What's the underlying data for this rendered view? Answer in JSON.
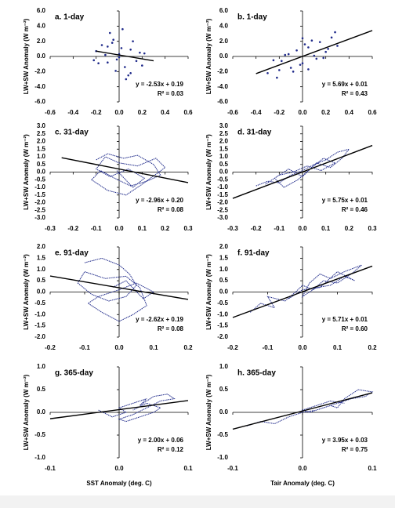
{
  "chart_data": [
    {
      "type": "scatter",
      "title": "a. 1-day",
      "ylabel": "LW+SW Anomaly (W m⁻²)",
      "color": "#1f2a8a",
      "x": [
        -0.15,
        -0.1,
        -0.05,
        0,
        0.05,
        0.1,
        0.15,
        -0.2,
        0.2,
        -0.08,
        0.08,
        0.02,
        -0.02,
        0.12,
        -0.12,
        0.06,
        -0.06,
        0.18,
        -0.18,
        0.03,
        -0.03,
        0.1,
        -0.1,
        0,
        0.22,
        -0.22
      ],
      "values": [
        1.5,
        -0.8,
        2.2,
        0.3,
        -1.4,
        0.9,
        -0.6,
        0.7,
        -1.2,
        3.1,
        -2.5,
        1.1,
        -0.4,
        2.0,
        0.2,
        -3.0,
        1.8,
        0.5,
        -0.9,
        3.6,
        -1.9,
        -2.2,
        1.3,
        -0.1,
        0.4,
        -0.5
      ],
      "fit": {
        "x": [
          -0.2,
          0.3
        ],
        "values": [
          0.7,
          -0.57
        ],
        "color": "#000000"
      },
      "equation": "y = -2.53x + 0.19",
      "r2": "R² = 0.03",
      "xlim": [
        -0.6,
        0.6
      ],
      "xticks": [
        -0.6,
        -0.4,
        -0.2,
        {
          "value": 0,
          "label": "0.0"
        },
        0.2,
        0.4,
        0.6
      ],
      "ylim": [
        -6,
        6
      ],
      "yticks": [
        {
          "value": -6,
          "label": "-6.0"
        },
        {
          "value": -4,
          "label": "-4.0"
        },
        {
          "value": -2,
          "label": "-2.0"
        },
        {
          "value": 0,
          "label": "0.0"
        },
        {
          "value": 2,
          "label": "2.0"
        },
        {
          "value": 4,
          "label": "4.0"
        },
        {
          "value": 6,
          "label": "6.0"
        }
      ]
    },
    {
      "type": "scatter",
      "title": "b. 1-day",
      "ylabel": "LW+SW Anomaly (W m⁻²)",
      "color": "#1f2a8a",
      "x": [
        -0.3,
        -0.25,
        -0.2,
        -0.15,
        -0.1,
        -0.05,
        0,
        0.05,
        0.1,
        0.15,
        0.2,
        0.25,
        0.3,
        -0.22,
        -0.12,
        -0.02,
        0.08,
        0.18,
        0.28,
        -0.18,
        -0.08,
        0.02,
        0.12,
        0.22,
        0,
        0.05
      ],
      "values": [
        -2.2,
        -0.5,
        -1.8,
        0.2,
        -1.5,
        0.8,
        -0.9,
        1.2,
        0.1,
        1.9,
        0.6,
        2.5,
        1.4,
        -2.8,
        0.3,
        -1.1,
        2.1,
        -0.2,
        3.2,
        -0.6,
        -2.0,
        1.6,
        -0.3,
        1.0,
        2.4,
        -1.7
      ],
      "fit": {
        "x": [
          -0.4,
          0.6
        ],
        "values": [
          -2.27,
          3.42
        ],
        "color": "#000000"
      },
      "equation": "y = 5.69x + 0.01",
      "r2": "R² = 0.43",
      "xlim": [
        -0.6,
        0.6
      ],
      "xticks": [
        -0.6,
        -0.4,
        -0.2,
        {
          "value": 0,
          "label": "0.0"
        },
        0.2,
        0.4,
        0.6
      ],
      "ylim": [
        -6,
        6
      ],
      "yticks": [
        {
          "value": -6,
          "label": "-6.0"
        },
        {
          "value": -4,
          "label": "-4.0"
        },
        {
          "value": -2,
          "label": "-2.0"
        },
        {
          "value": 0,
          "label": "0.0"
        },
        {
          "value": 2,
          "label": "2.0"
        },
        {
          "value": 4,
          "label": "4.0"
        },
        {
          "value": 6,
          "label": "6.0"
        }
      ]
    },
    {
      "type": "line",
      "title": "c. 31-day",
      "ylabel": "LW+SW Anomaly (W m⁻²)",
      "color": "#1f2a8a",
      "x": [
        -0.1,
        -0.05,
        0.02,
        0.08,
        0.15,
        0.18,
        0.12,
        0.05,
        -0.02,
        -0.08,
        -0.12,
        -0.05,
        0.03,
        0.1,
        0.2,
        0.16,
        0.08,
        0,
        -0.06,
        -0.1,
        -0.04,
        0.04,
        0.11,
        0.06,
        -0.01
      ],
      "values": [
        0.8,
        1.2,
        0.9,
        1.1,
        0.5,
        -0.2,
        -0.6,
        -0.9,
        -0.4,
        0.1,
        -0.5,
        -1.2,
        -1.5,
        -0.8,
        0.3,
        0.9,
        0.4,
        0.6,
        1.0,
        0.2,
        -0.3,
        0.2,
        -0.4,
        -1.0,
        0.1
      ],
      "fit": {
        "x": [
          -0.25,
          0.3
        ],
        "values": [
          0.94,
          -0.69
        ],
        "color": "#000000"
      },
      "equation": "y = -2.96x + 0.20",
      "r2": "R² = 0.08",
      "xlim": [
        -0.3,
        0.3
      ],
      "xticks": [
        -0.3,
        -0.2,
        -0.1,
        {
          "value": 0,
          "label": "0.0"
        },
        0.1,
        0.2,
        0.3
      ],
      "ylim": [
        -3,
        3
      ],
      "yticks": [
        {
          "value": -3,
          "label": "-3.0"
        },
        -2.5,
        {
          "value": -2,
          "label": "-2.0"
        },
        -1.5,
        {
          "value": -1,
          "label": "-1.0"
        },
        -0.5,
        {
          "value": 0,
          "label": "0.0"
        },
        0.5,
        {
          "value": 1,
          "label": "1.0"
        },
        1.5,
        {
          "value": 2,
          "label": "2.0"
        },
        2.5,
        {
          "value": 3,
          "label": "3.0"
        }
      ]
    },
    {
      "type": "line",
      "title": "d. 31-day",
      "ylabel": "LW+SW Anomaly (W m⁻²)",
      "color": "#1f2a8a",
      "x": [
        -0.2,
        -0.15,
        -0.1,
        -0.05,
        0,
        0.05,
        0.1,
        0.15,
        0.2,
        0.17,
        0.12,
        0.06,
        0,
        -0.06,
        -0.12,
        -0.08,
        -0.02,
        0.04,
        0.09,
        0.14,
        0.08,
        0.02,
        -0.04,
        -0.1,
        -0.16
      ],
      "values": [
        -0.9,
        -0.6,
        -0.7,
        -0.2,
        0.1,
        0.5,
        0.8,
        1.3,
        1.5,
        0.9,
        0.3,
        0.6,
        -0.3,
        0.2,
        -0.4,
        -1.0,
        -0.5,
        0.3,
        0.9,
        0.6,
        0.1,
        0.4,
        0.0,
        -0.2,
        -0.8
      ],
      "fit": {
        "x": [
          -0.3,
          0.3
        ],
        "values": [
          -1.72,
          1.74
        ],
        "color": "#000000"
      },
      "equation": "y = 5.75x + 0.01",
      "r2": "R² = 0.46",
      "xlim": [
        -0.3,
        0.3
      ],
      "xticks": [
        -0.3,
        -0.2,
        -0.1,
        {
          "value": 0,
          "label": "0.0"
        },
        0.1,
        0.2,
        0.3
      ],
      "ylim": [
        -3,
        3
      ],
      "yticks": [
        {
          "value": -3,
          "label": "-3.0"
        },
        -2.5,
        {
          "value": -2,
          "label": "-2.0"
        },
        -1.5,
        {
          "value": -1,
          "label": "-1.0"
        },
        -0.5,
        {
          "value": 0,
          "label": "0.0"
        },
        0.5,
        {
          "value": 1,
          "label": "1.0"
        },
        1.5,
        {
          "value": 2,
          "label": "2.0"
        },
        2.5,
        {
          "value": 3,
          "label": "3.0"
        }
      ]
    },
    {
      "type": "line",
      "title": "e. 91-day",
      "ylabel": "LW+SW Anomaly (W m⁻²)",
      "color": "#1f2a8a",
      "x": [
        -0.1,
        -0.05,
        0,
        0.03,
        0.05,
        0.02,
        -0.03,
        -0.08,
        -0.12,
        -0.1,
        -0.04,
        0.02,
        0.06,
        0.08,
        0.04,
        0,
        -0.05,
        -0.09,
        -0.06,
        0,
        0.05,
        0.1,
        0.07,
        0.02,
        -0.02
      ],
      "values": [
        1.3,
        1.5,
        1.2,
        0.8,
        0.3,
        -0.2,
        -0.4,
        -0.1,
        0.4,
        0.9,
        0.6,
        0.7,
        0.2,
        -0.6,
        -1.0,
        -1.3,
        -0.9,
        -0.5,
        -0.2,
        0.1,
        0.4,
        0.0,
        -0.3,
        0.5,
        0.2
      ],
      "fit": {
        "x": [
          -0.2,
          0.2
        ],
        "values": [
          0.71,
          -0.33
        ],
        "color": "#000000"
      },
      "equation": "y = -2.62x + 0.19",
      "r2": "R² = 0.08",
      "xlim": [
        -0.2,
        0.2
      ],
      "xticks": [
        -0.2,
        -0.1,
        {
          "value": 0,
          "label": "0.0"
        },
        0.1,
        0.2
      ],
      "ylim": [
        -2,
        2
      ],
      "yticks": [
        {
          "value": -2,
          "label": "-2.0"
        },
        -1.5,
        {
          "value": -1,
          "label": "-1.0"
        },
        -0.5,
        {
          "value": 0,
          "label": "0.0"
        },
        0.5,
        {
          "value": 1,
          "label": "1.0"
        },
        1.5,
        {
          "value": 2,
          "label": "2.0"
        }
      ]
    },
    {
      "type": "line",
      "title": "f. 91-day",
      "ylabel": "LW+SW Anomaly (W m⁻²)",
      "color": "#1f2a8a",
      "x": [
        -0.15,
        -0.12,
        -0.08,
        -0.1,
        -0.05,
        -0.02,
        0,
        0.03,
        0.06,
        0.1,
        0.14,
        0.17,
        0.12,
        0.08,
        0.05,
        0.02,
        0,
        0.04,
        0.08,
        0.12,
        0.15,
        0.1,
        0.05,
        0,
        -0.04
      ],
      "values": [
        -0.9,
        -0.5,
        -0.7,
        -0.2,
        -0.4,
        0.0,
        0.3,
        0.1,
        0.5,
        0.4,
        0.8,
        1.2,
        0.9,
        0.6,
        0.8,
        0.4,
        -0.2,
        0.2,
        0.3,
        0.7,
        0.5,
        0.9,
        0.2,
        0.1,
        -0.3
      ],
      "fit": {
        "x": [
          -0.2,
          0.2
        ],
        "values": [
          -1.13,
          1.15
        ],
        "color": "#000000"
      },
      "equation": "y = 5.71x + 0.01",
      "r2": "R² = 0.60",
      "xlim": [
        -0.2,
        0.2
      ],
      "xticks": [
        -0.2,
        -0.1,
        {
          "value": 0,
          "label": "0.0"
        },
        0.1,
        0.2
      ],
      "ylim": [
        -2,
        2
      ],
      "yticks": [
        {
          "value": -2,
          "label": "-2.0"
        },
        -1.5,
        {
          "value": -1,
          "label": "-1.0"
        },
        -0.5,
        {
          "value": 0,
          "label": "0.0"
        },
        0.5,
        {
          "value": 1,
          "label": "1.0"
        },
        1.5,
        {
          "value": 2,
          "label": "2.0"
        }
      ]
    },
    {
      "type": "line",
      "title": "g. 365-day",
      "ylabel": "LW+SW Anomaly (W m⁻²)",
      "xlabel": "SST Anomaly (deg. C)",
      "color": "#1f2a8a",
      "x": [
        -0.03,
        -0.01,
        0.01,
        0.0,
        0.02,
        0.04,
        0.03,
        0.05,
        0.07,
        0.08,
        0.06,
        0.04,
        0.02,
        0.0,
        0.01,
        0.03,
        0.05,
        0.06,
        0.04,
        0.02
      ],
      "values": [
        0.05,
        -0.1,
        0.0,
        0.1,
        0.2,
        0.3,
        0.15,
        0.35,
        0.4,
        0.3,
        0.25,
        0.1,
        -0.05,
        -0.15,
        -0.2,
        -0.1,
        0.0,
        0.1,
        0.2,
        0.05
      ],
      "fit": {
        "x": [
          -0.1,
          0.1
        ],
        "values": [
          -0.14,
          0.26
        ],
        "color": "#000000"
      },
      "equation": "y = 2.00x + 0.06",
      "r2": "R² = 0.12",
      "xlim": [
        -0.1,
        0.1
      ],
      "xticks": [
        -0.1,
        {
          "value": 0,
          "label": "0.0"
        },
        0.1
      ],
      "ylim": [
        -1,
        1
      ],
      "yticks": [
        {
          "value": -1,
          "label": "-1.0"
        },
        -0.5,
        {
          "value": 0,
          "label": "0.0"
        },
        0.5,
        {
          "value": 1,
          "label": "1.0"
        }
      ]
    },
    {
      "type": "line",
      "title": "h. 365-day",
      "ylabel": "LW+SW Anomaly (W m⁻²)",
      "xlabel": "Tair Anomaly (deg. C)",
      "color": "#1f2a8a",
      "x": [
        -0.08,
        -0.06,
        -0.04,
        -0.02,
        0,
        0.02,
        0.04,
        0.05,
        0.06,
        0.08,
        0.1,
        0.09,
        0.07,
        0.05,
        0.03,
        0.01,
        0,
        0.02,
        0.04,
        0.06
      ],
      "values": [
        -0.3,
        -0.2,
        -0.25,
        -0.1,
        0.0,
        0.05,
        0.15,
        0.1,
        0.3,
        0.5,
        0.45,
        0.35,
        0.3,
        0.2,
        0.1,
        0.0,
        0.05,
        0.15,
        0.25,
        0.2
      ],
      "fit": {
        "x": [
          -0.1,
          0.1
        ],
        "values": [
          -0.37,
          0.43
        ],
        "color": "#000000"
      },
      "equation": "y = 3.95x + 0.03",
      "r2": "R² = 0.75",
      "xlim": [
        -0.1,
        0.1
      ],
      "xticks": [
        -0.1,
        {
          "value": 0,
          "label": "0.0"
        },
        0.1
      ],
      "ylim": [
        -1,
        1
      ],
      "yticks": [
        {
          "value": -1,
          "label": "-1.0"
        },
        -0.5,
        {
          "value": 0,
          "label": "0.0"
        },
        0.5,
        {
          "value": 1,
          "label": "1.0"
        }
      ]
    }
  ]
}
